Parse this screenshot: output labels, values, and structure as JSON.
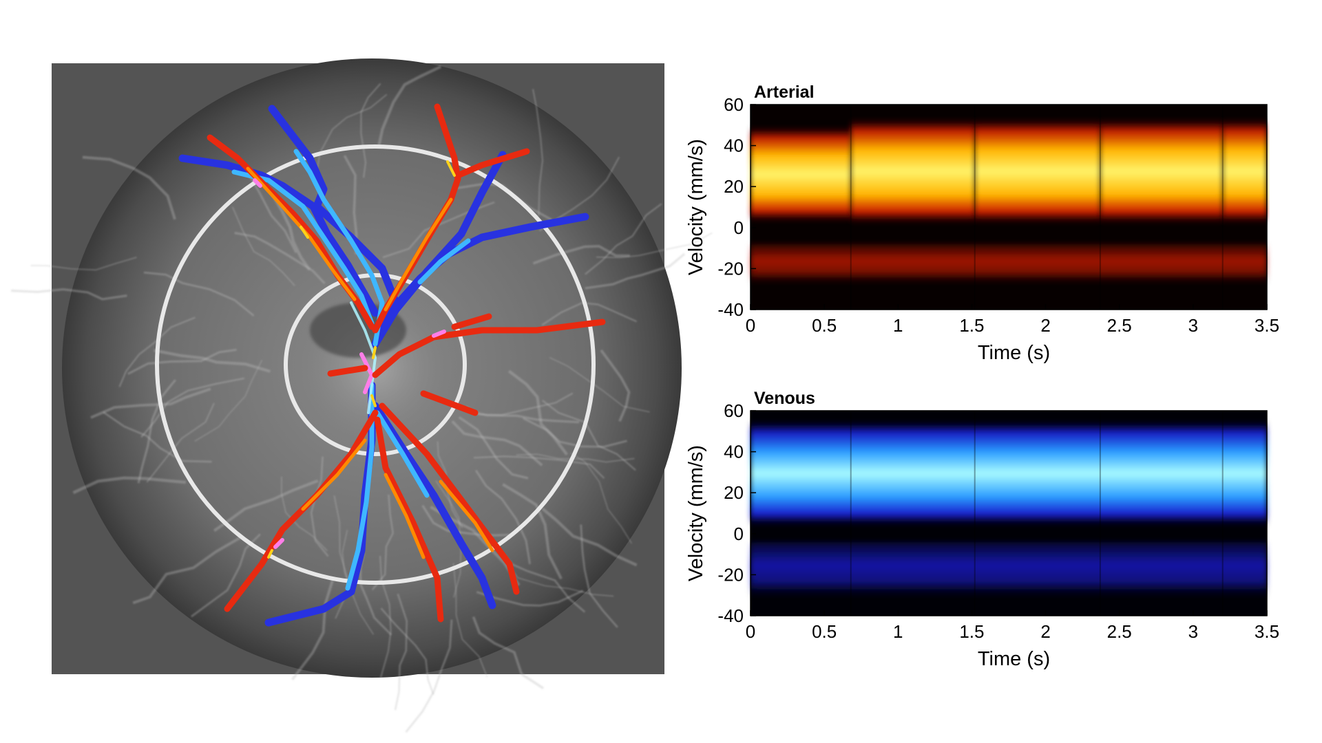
{
  "figure": {
    "left_panel": {
      "background_color": "#5a5a5a",
      "disc_color": "#6b6b6b",
      "ring_color": "#e8e8e8",
      "artery_colors": [
        "#e82a10",
        "#ff8a00",
        "#ffd21a"
      ],
      "vein_colors": [
        "#2832e0",
        "#3fb7ff",
        "#9cf3ff"
      ]
    }
  },
  "chart_data": [
    {
      "type": "heatmap",
      "title": "Arterial",
      "xlabel": "Time (s)",
      "ylabel": "Velocity (mm/s)",
      "xlim": [
        0,
        3.5
      ],
      "ylim": [
        -40,
        60
      ],
      "xticks": [
        "0",
        "0.5",
        "1",
        "1.5",
        "2",
        "2.5",
        "3",
        "3.5"
      ],
      "yticks": [
        "60",
        "40",
        "20",
        "0",
        "-20",
        "-40"
      ],
      "colormap": "hot",
      "colors": {
        "background": "#060000",
        "band_high": "#fff36a",
        "band_mid": "#ffb400",
        "band_low": "#d21a05"
      },
      "systolic_peak_times_s": [
        0.68,
        1.52,
        2.37,
        3.2
      ],
      "cycle_segments": [
        {
          "start": 0,
          "end": 0.68,
          "band_low": 12,
          "band_high": 40
        },
        {
          "start": 0.68,
          "end": 1.52,
          "band_low": 12,
          "band_high": 43
        },
        {
          "start": 1.52,
          "end": 2.37,
          "band_low": 12,
          "band_high": 43
        },
        {
          "start": 2.37,
          "end": 3.2,
          "band_low": 12,
          "band_high": 43
        },
        {
          "start": 3.2,
          "end": 3.5,
          "band_low": 12,
          "band_high": 43
        }
      ],
      "negative_band": {
        "low": -28,
        "high": -8
      },
      "grid": false
    },
    {
      "type": "heatmap",
      "title": "Venous",
      "xlabel": "Time (s)",
      "ylabel": "Velocity (mm/s)",
      "xlim": [
        0,
        3.5
      ],
      "ylim": [
        -40,
        60
      ],
      "xticks": [
        "0",
        "0.5",
        "1",
        "1.5",
        "2",
        "2.5",
        "3",
        "3.5"
      ],
      "yticks": [
        "60",
        "40",
        "20",
        "0",
        "-20",
        "-40"
      ],
      "colormap": "cool-blue",
      "colors": {
        "background": "#000006",
        "band_high": "#a8fbff",
        "band_mid": "#2a9cff",
        "band_low": "#1a1ed8"
      },
      "systolic_peak_times_s": [
        0.68,
        1.52,
        2.37,
        3.2
      ],
      "cycle_segments": [
        {
          "start": 0,
          "end": 3.5,
          "band_low": 14,
          "band_high": 45
        }
      ],
      "negative_band": {
        "low": -32,
        "high": -4
      },
      "grid": false
    }
  ]
}
